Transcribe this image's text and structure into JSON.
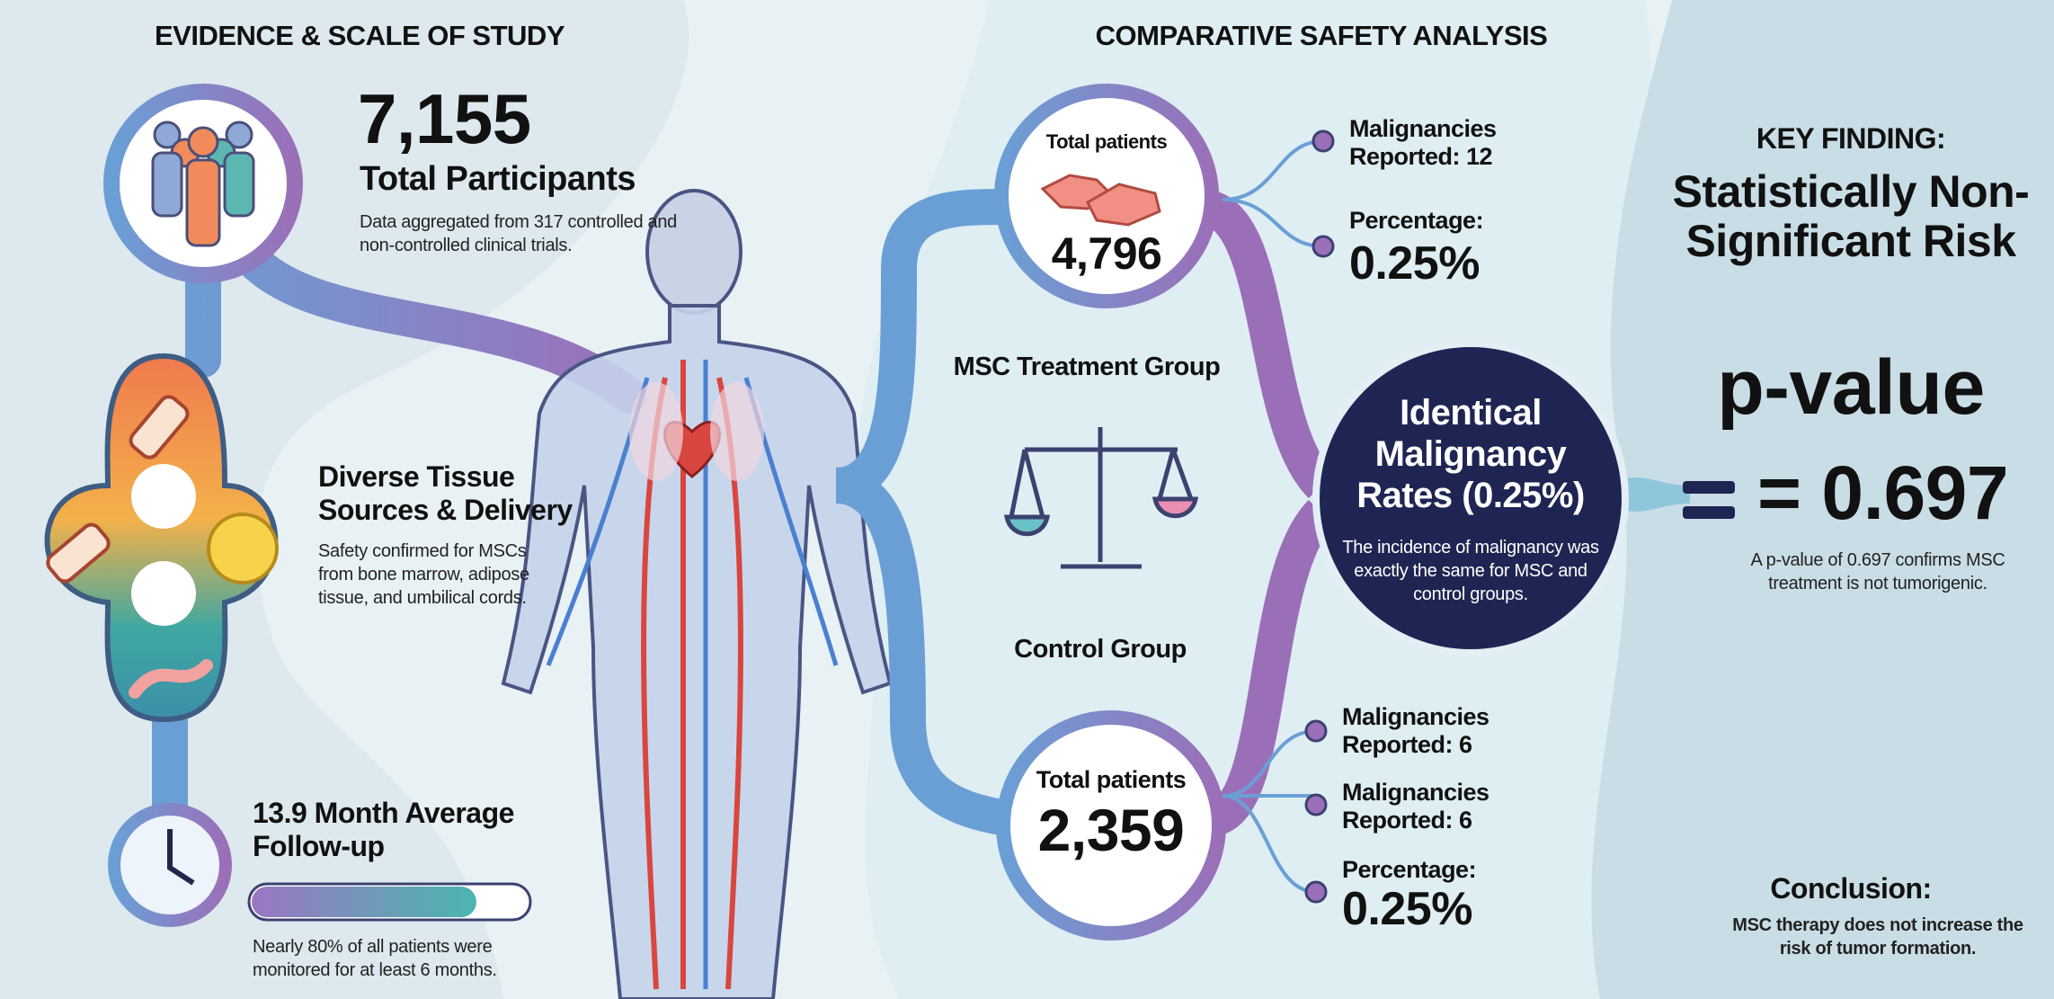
{
  "evidence": {
    "title": "EVIDENCE & SCALE OF STUDY",
    "participants": {
      "value": "7,155",
      "label": "Total Participants",
      "note": "Data aggregated from 317 controlled and non-controlled clinical trials."
    },
    "tissue": {
      "title": "Diverse Tissue Sources & Delivery",
      "note": "Safety confirmed for MSCs from bone marrow, adipose tissue, and umbilical cords."
    },
    "followup": {
      "title": "13.9 Month Average Follow-up",
      "note": "Nearly 80% of all patients were monitored for at least 6 months."
    }
  },
  "comparison": {
    "title": "COMPARATIVE SAFETY ANALYSIS",
    "treatment": {
      "label": "MSC Treatment Group",
      "patients_label": "Total patients",
      "patients": "4,796",
      "stats": [
        "Malignancies Reported: 12",
        "Percentage:",
        "0.25%"
      ]
    },
    "control": {
      "label": "Control Group",
      "patients_label": "Total patients",
      "patients": "2,359",
      "stats": [
        "Malignancies Reported: 6",
        "Malignancies Reported: 6",
        "Percentage:",
        "0.25%"
      ]
    },
    "result": {
      "title": "Identical Malignancy Rates (0.25%)",
      "note": "The incidence of malignancy was exactly the same for MSC and control groups."
    }
  },
  "key": {
    "heading": "KEY FINDING:",
    "title": "Statistically Non-Significant Risk",
    "pvalue_label": "p-value",
    "pvalue": "= 0.697",
    "note": "A p-value of 0.697 confirms MSC treatment is not tumorigenic.",
    "conclusion_title": "Conclusion:",
    "conclusion": "MSC therapy does not increase the risk of tumor formation."
  }
}
